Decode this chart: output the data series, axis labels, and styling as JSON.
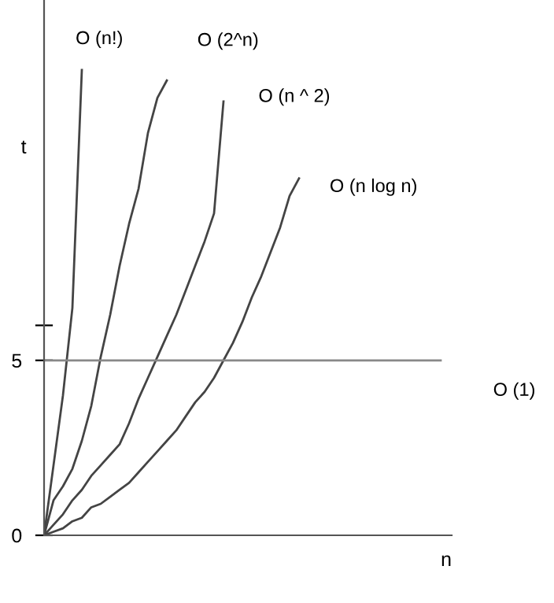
{
  "chart_data": {
    "type": "line",
    "xlabel": "n",
    "ylabel": "t",
    "categories": [
      null,
      null,
      null,
      null,
      null,
      null,
      null,
      null,
      null,
      null,
      null,
      null,
      null,
      null,
      null,
      null,
      null,
      null,
      null,
      null,
      null,
      null,
      null,
      null,
      null,
      null,
      null,
      null,
      null,
      null,
      null,
      null,
      null,
      null,
      null,
      null,
      null,
      null,
      null,
      null,
      null,
      null,
      null
    ],
    "ylim": [
      0,
      15.3
    ],
    "yticks": [
      0,
      5,
      {
        "value": 6,
        "label": null
      }
    ],
    "grid": false,
    "legend": false,
    "marker": "none",
    "line_style": "solid",
    "series": [
      {
        "name": "O (n!)",
        "color": "#444444",
        "values": [
          0,
          2.0,
          4.0,
          6.5,
          13.3,
          null,
          null,
          null,
          null,
          null,
          null,
          null,
          null,
          null,
          null,
          null,
          null,
          null,
          null,
          null,
          null,
          null,
          null,
          null,
          null,
          null,
          null,
          null,
          null,
          null,
          null,
          null,
          null,
          null,
          null,
          null,
          null,
          null,
          null,
          null,
          null,
          null,
          null
        ]
      },
      {
        "name": "O (2^n)",
        "color": "#444444",
        "values": [
          0,
          1.0,
          1.4,
          1.9,
          2.7,
          3.7,
          5.1,
          6.3,
          7.7,
          8.9,
          9.9,
          11.5,
          12.5,
          13.0,
          null,
          null,
          null,
          null,
          null,
          null,
          null,
          null,
          null,
          null,
          null,
          null,
          null,
          null,
          null,
          null,
          null,
          null,
          null,
          null,
          null,
          null,
          null,
          null,
          null,
          null,
          null,
          null,
          null
        ]
      },
      {
        "name": "O (n ^ 2)",
        "color": "#444444",
        "values": [
          0,
          0.3,
          0.6,
          1.0,
          1.3,
          1.7,
          2.0,
          2.3,
          2.6,
          3.2,
          3.9,
          4.5,
          5.1,
          5.7,
          6.3,
          7.0,
          7.7,
          8.4,
          9.2,
          12.4,
          null,
          null,
          null,
          null,
          null,
          null,
          null,
          null,
          null,
          null,
          null,
          null,
          null,
          null,
          null,
          null,
          null,
          null,
          null,
          null,
          null,
          null,
          null
        ]
      },
      {
        "name": "O (n log n)",
        "color": "#444444",
        "values": [
          0,
          0.1,
          0.2,
          0.4,
          0.5,
          0.8,
          0.9,
          1.1,
          1.3,
          1.5,
          1.8,
          2.1,
          2.4,
          2.7,
          3.0,
          3.4,
          3.8,
          4.1,
          4.5,
          5.0,
          5.5,
          6.1,
          6.8,
          7.4,
          8.1,
          8.8,
          9.7,
          10.2,
          null,
          null,
          null,
          null,
          null,
          null,
          null,
          null,
          null,
          null,
          null,
          null,
          null,
          null,
          null
        ]
      },
      {
        "name": "O (1)",
        "color": "#888888",
        "values": [
          5,
          5,
          5,
          5,
          5,
          5,
          5,
          5,
          5,
          5,
          5,
          5,
          5,
          5,
          5,
          5,
          5,
          5,
          5,
          5,
          5,
          5,
          5,
          5,
          5,
          5,
          5,
          5,
          5,
          5,
          5,
          5,
          5,
          5,
          5,
          5,
          5,
          5,
          5,
          5,
          5,
          5,
          5
        ]
      }
    ]
  }
}
